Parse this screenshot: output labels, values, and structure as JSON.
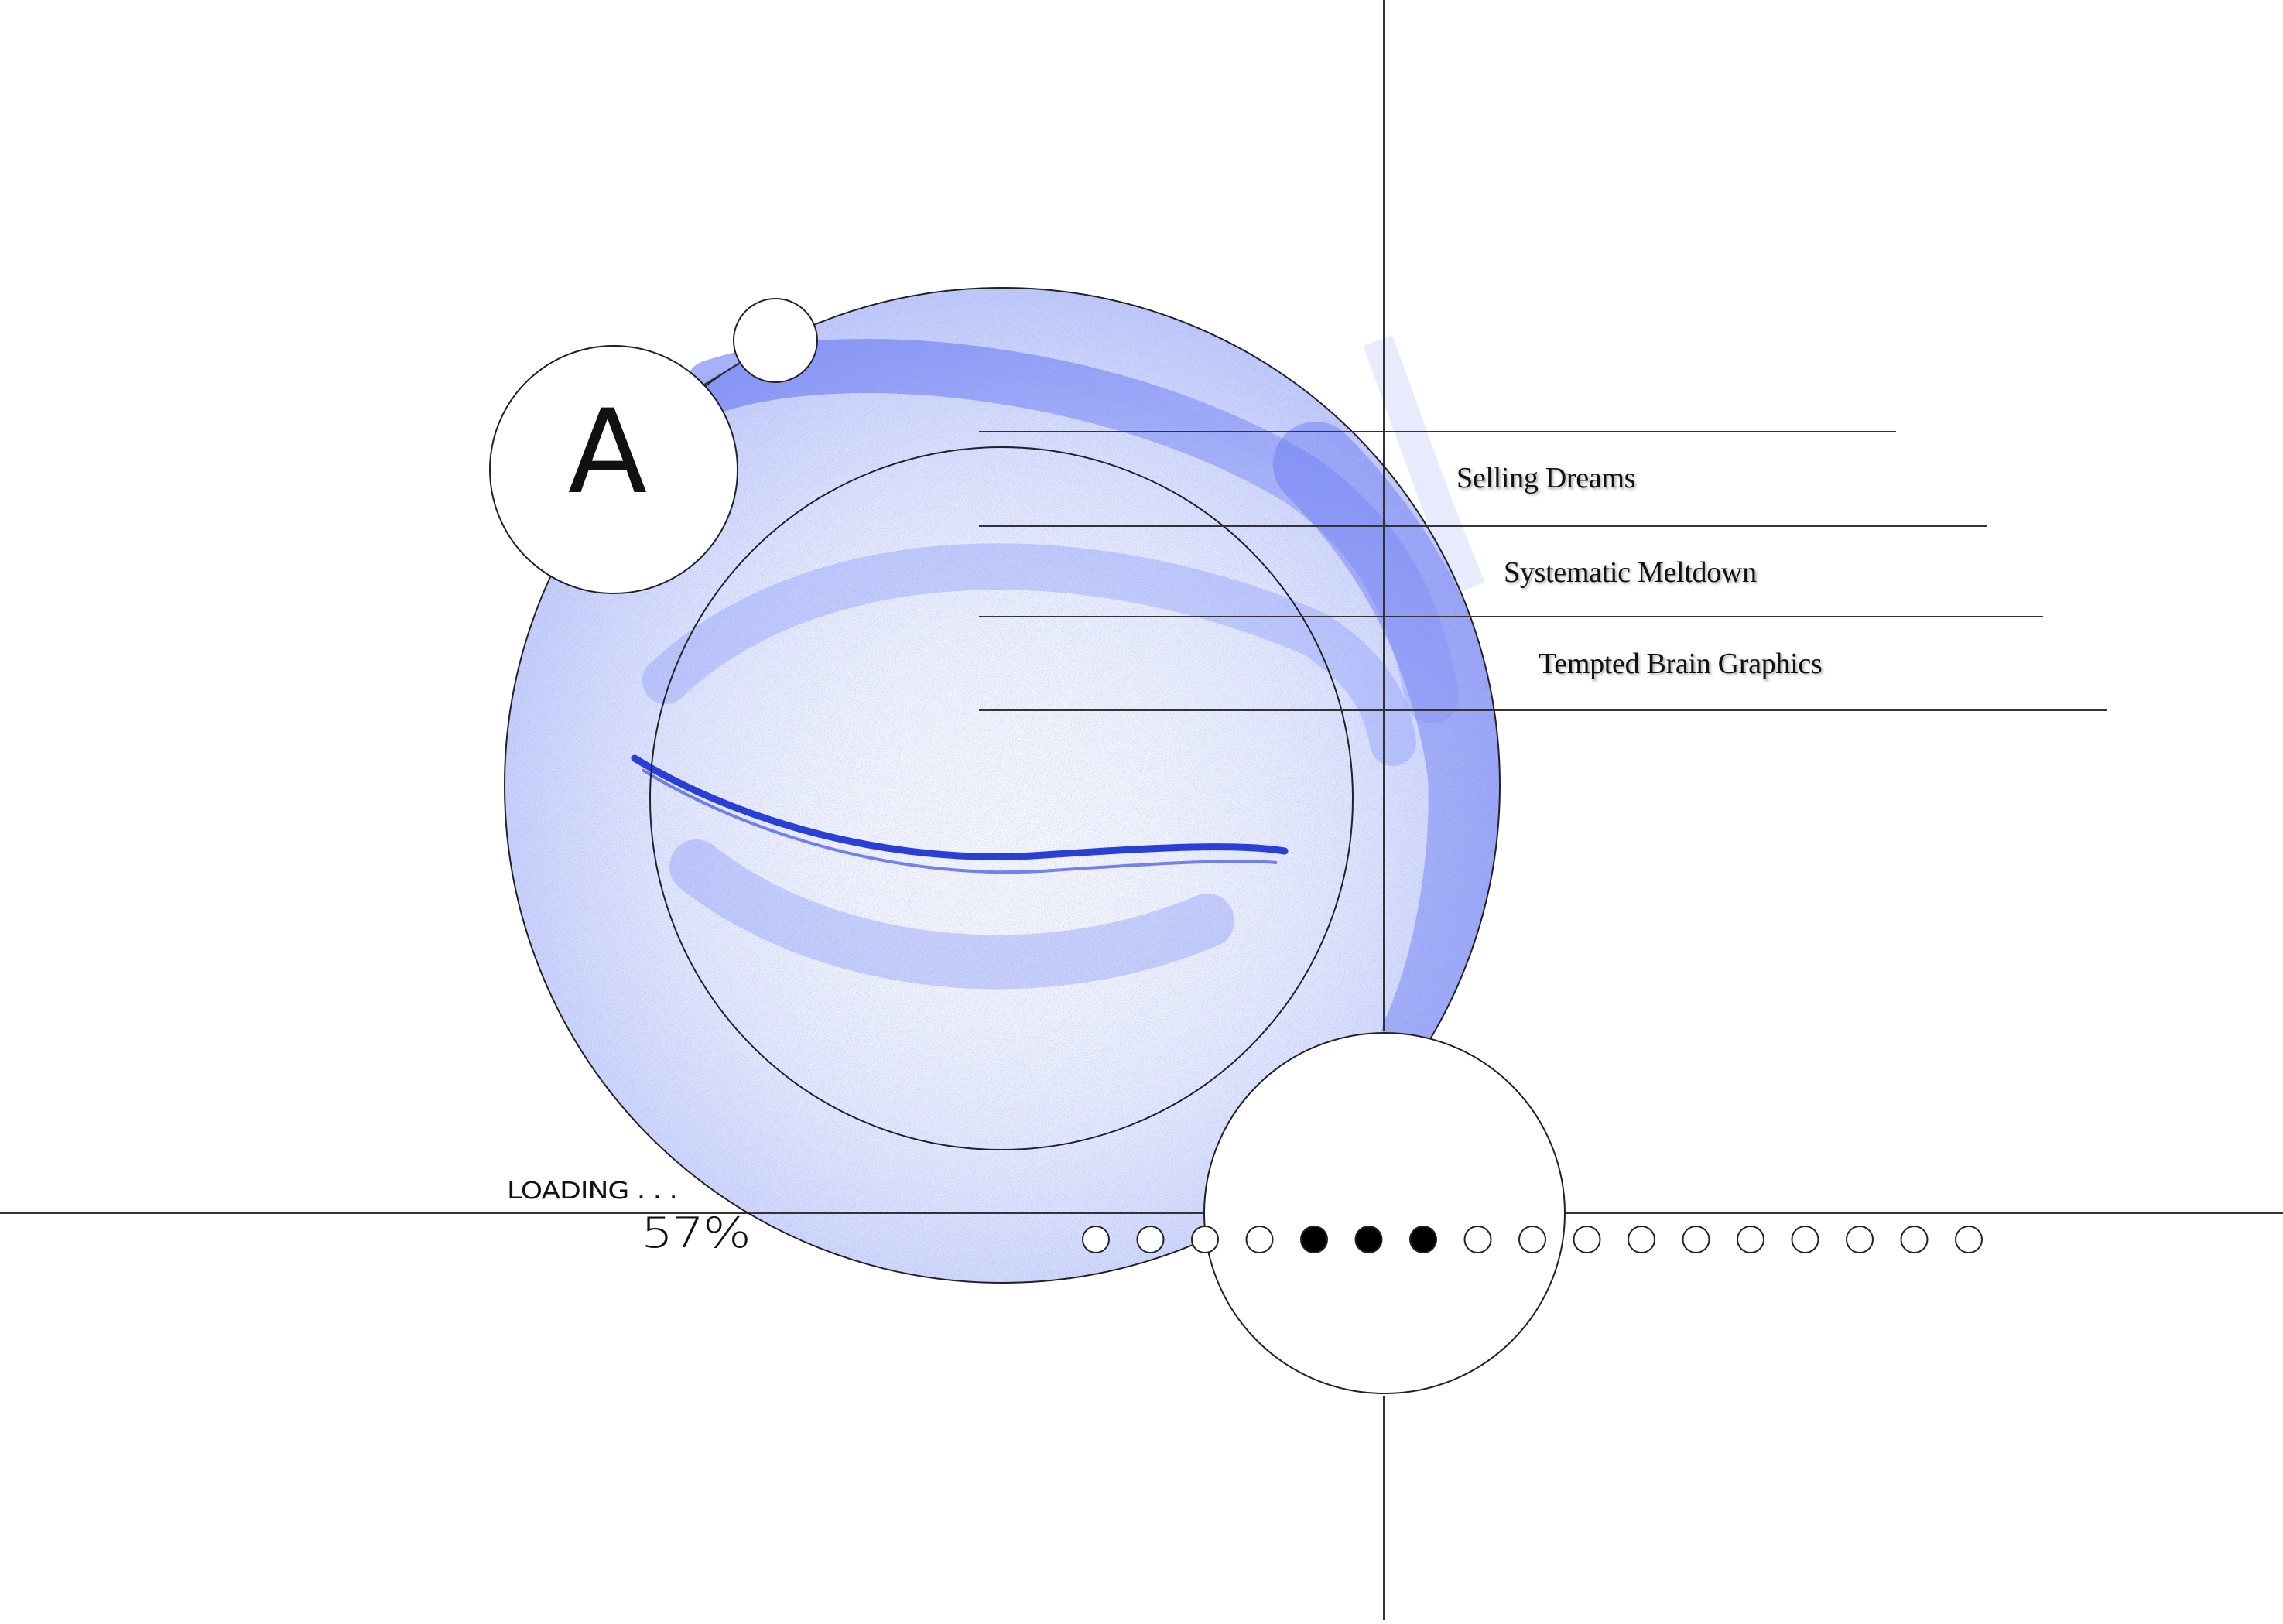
{
  "brand": {
    "letter": "A"
  },
  "menu": {
    "items": [
      {
        "label": "Selling Dreams"
      },
      {
        "label": "Systematic Meltdown"
      },
      {
        "label": "Tempted Brain Graphics"
      }
    ]
  },
  "loading": {
    "label": "LOADING . . .",
    "percent_text": "57%",
    "progress_value": 57
  },
  "progress_dots": {
    "total": 17,
    "filled_indices": [
      4,
      5,
      6
    ]
  },
  "colors": {
    "accent_blue": "#3a4fe0",
    "line": "#333333",
    "background": "#ffffff"
  },
  "icons": {
    "eye_image": "closed-eye-illustration"
  }
}
